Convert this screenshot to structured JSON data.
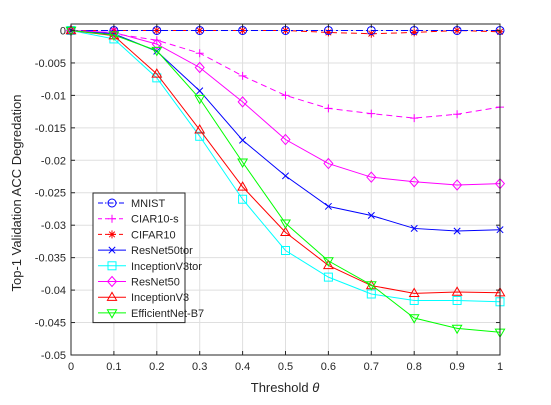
{
  "chart_data": {
    "type": "line",
    "xlabel": "Threshold",
    "xlabel_symbol": "θ",
    "ylabel": "Top-1 Validation ACC Degredation",
    "xlim": [
      0,
      1
    ],
    "ylim": [
      -0.05,
      0.001
    ],
    "grid": true,
    "legend_position": "bottom-left",
    "x_ticks": [
      0,
      0.1,
      0.2,
      0.3,
      0.4,
      0.5,
      0.6,
      0.7,
      0.8,
      0.9,
      1
    ],
    "x_tick_labels": [
      "0",
      "0.1",
      "0.2",
      "0.3",
      "0.4",
      "0.5",
      "0.6",
      "0.7",
      "0.8",
      "0.9",
      "1"
    ],
    "y_ticks": [
      0,
      -0.005,
      -0.01,
      -0.015,
      -0.02,
      -0.025,
      -0.03,
      -0.035,
      -0.04,
      -0.045,
      -0.05
    ],
    "y_tick_labels": [
      "0",
      "-0.005",
      "-0.01",
      "-0.015",
      "-0.02",
      "-0.025",
      "-0.03",
      "-0.035",
      "-0.04",
      "-0.045",
      "-0.05"
    ],
    "x": [
      0,
      0.1,
      0.2,
      0.3,
      0.4,
      0.5,
      0.6,
      0.7,
      0.8,
      0.9,
      1
    ],
    "series": [
      {
        "name": "MNIST",
        "color": "#0000ff",
        "dash": "dashdot",
        "marker": "circle",
        "values": [
          0,
          0,
          0,
          0,
          0,
          0,
          0,
          0,
          0,
          0,
          0
        ]
      },
      {
        "name": "CIAR10-s",
        "color": "#ff00ff",
        "dash": "dashed",
        "marker": "plus",
        "values": [
          0,
          -0.0005,
          -0.0015,
          -0.0035,
          -0.007,
          -0.01,
          -0.012,
          -0.0128,
          -0.0135,
          -0.0129,
          -0.0118
        ]
      },
      {
        "name": "CIFAR10",
        "color": "#ff0000",
        "dash": "dashed",
        "marker": "asterisk",
        "values": [
          0,
          0,
          0,
          0,
          0,
          0,
          -0.0003,
          -0.0005,
          -0.0003,
          0,
          -0.0002
        ]
      },
      {
        "name": "ResNet50tor",
        "color": "#0000ff",
        "dash": "solid",
        "marker": "x",
        "values": [
          0,
          -0.0005,
          -0.0032,
          -0.0093,
          -0.0169,
          -0.0224,
          -0.0271,
          -0.0285,
          -0.0305,
          -0.0309,
          -0.0307
        ]
      },
      {
        "name": "InceptionV3tor",
        "color": "#00ffff",
        "dash": "solid",
        "marker": "square",
        "values": [
          0,
          -0.0013,
          -0.0073,
          -0.0163,
          -0.026,
          -0.0339,
          -0.038,
          -0.0406,
          -0.0416,
          -0.0416,
          -0.0418
        ]
      },
      {
        "name": "ResNet50",
        "color": "#ff00ff",
        "dash": "solid",
        "marker": "diamond",
        "values": [
          0,
          -0.0003,
          -0.0021,
          -0.0057,
          -0.011,
          -0.0168,
          -0.0205,
          -0.0226,
          -0.0233,
          -0.0238,
          -0.0236
        ]
      },
      {
        "name": "InceptionV3",
        "color": "#ff0000",
        "dash": "solid",
        "marker": "triangle-up",
        "values": [
          0,
          -0.0008,
          -0.0067,
          -0.0153,
          -0.0241,
          -0.0311,
          -0.0362,
          -0.0393,
          -0.0405,
          -0.0403,
          -0.0404
        ]
      },
      {
        "name": "EfficientNet-B7",
        "color": "#00ff00",
        "dash": "solid",
        "marker": "triangle-down",
        "values": [
          0,
          -0.0007,
          -0.0031,
          -0.0105,
          -0.0203,
          -0.0297,
          -0.0355,
          -0.0392,
          -0.0443,
          -0.0459,
          -0.0465
        ]
      }
    ]
  }
}
